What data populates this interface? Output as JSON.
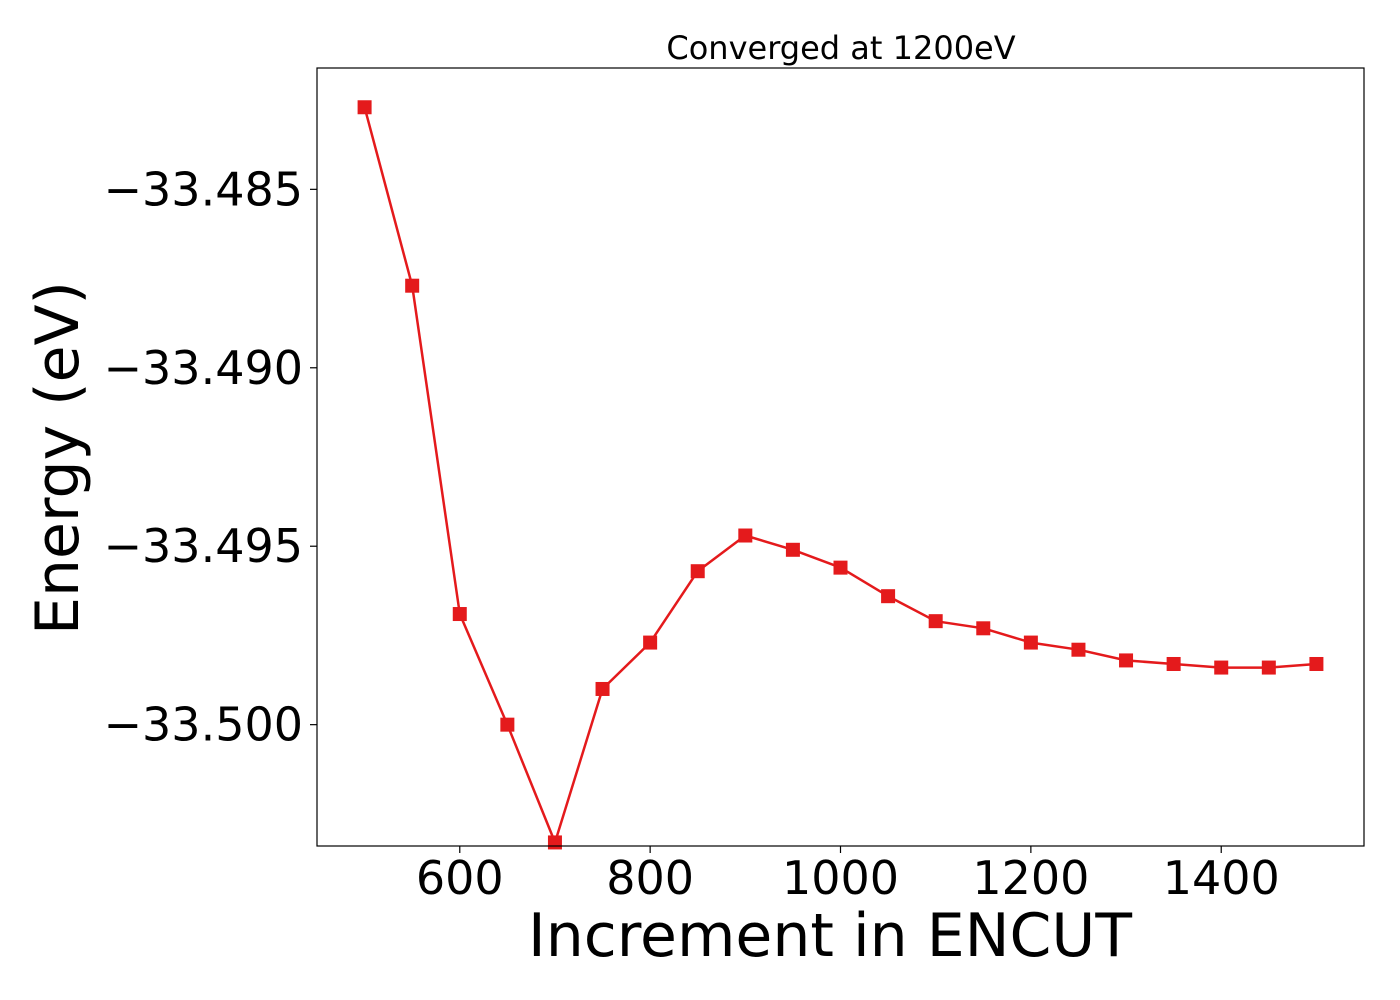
{
  "chart_data": {
    "type": "line",
    "title": "Converged at 1200eV",
    "xlabel": "Increment in ENCUT",
    "ylabel": "Energy (eV)",
    "xlim": [
      450,
      1550
    ],
    "ylim": [
      -33.5034,
      -33.4816
    ],
    "xticks": [
      600,
      800,
      1000,
      1200,
      1400
    ],
    "xtick_labels": [
      "600",
      "800",
      "1000",
      "1200",
      "1400"
    ],
    "yticks": [
      -33.485,
      -33.49,
      -33.495,
      -33.5
    ],
    "ytick_labels": [
      "−33.485",
      "−33.490",
      "−33.495",
      "−33.500"
    ],
    "grid": false,
    "series": [
      {
        "color": "#e41a1c",
        "marker": "square",
        "x": [
          500,
          550,
          600,
          650,
          700,
          750,
          800,
          850,
          900,
          950,
          1000,
          1050,
          1100,
          1150,
          1200,
          1250,
          1300,
          1350,
          1400,
          1450,
          1500
        ],
        "y": [
          -33.4827,
          -33.4877,
          -33.4969,
          -33.5,
          -33.5033,
          -33.499,
          -33.4977,
          -33.4957,
          -33.4947,
          -33.4951,
          -33.4956,
          -33.4964,
          -33.4971,
          -33.4973,
          -33.4977,
          -33.4979,
          -33.4982,
          -33.4983,
          -33.4984,
          -33.4984,
          -33.4983
        ]
      }
    ]
  }
}
